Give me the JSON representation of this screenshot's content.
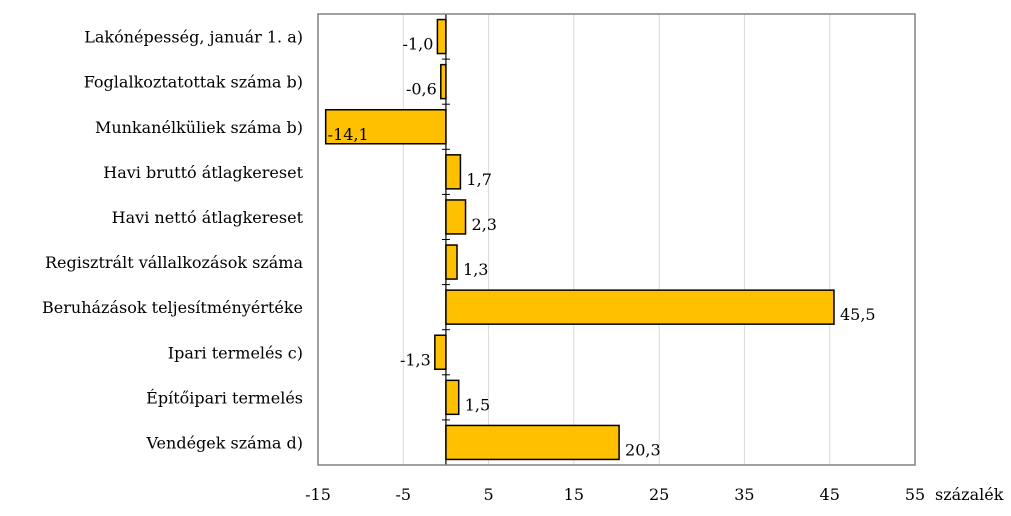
{
  "chart_data": {
    "type": "bar",
    "orientation": "horizontal",
    "categories": [
      "Lakónépesség, január 1. a)",
      "Foglalkoztatottak száma b)",
      "Munkanélküliek száma b)",
      "Havi bruttó átlagkereset",
      "Havi nettó átlagkereset",
      "Regisztrált vállalkozások száma",
      "Beruházások teljesítményértéke",
      "Ipari termelés c)",
      "Építőipari termelés",
      "Vendégek száma d)"
    ],
    "values": [
      -1.0,
      -0.6,
      -14.1,
      1.7,
      2.3,
      1.3,
      45.5,
      -1.3,
      1.5,
      20.3
    ],
    "value_labels": [
      "-1,0",
      "-0,6",
      "-14,1",
      "1,7",
      "2,3",
      "1,3",
      "45,5",
      "-1,3",
      "1,5",
      "20,3"
    ],
    "xlim": [
      -15,
      55
    ],
    "xticks": [
      -15,
      -5,
      5,
      15,
      25,
      35,
      45,
      55
    ],
    "xtick_labels": [
      "-15",
      "-5",
      "5",
      "15",
      "25",
      "35",
      "45",
      "55"
    ],
    "xlabel": "százalék",
    "bar_color": "#ffc000",
    "bar_edge_color": "#000000",
    "grid": true,
    "grid_color": "#d9d9d9"
  }
}
